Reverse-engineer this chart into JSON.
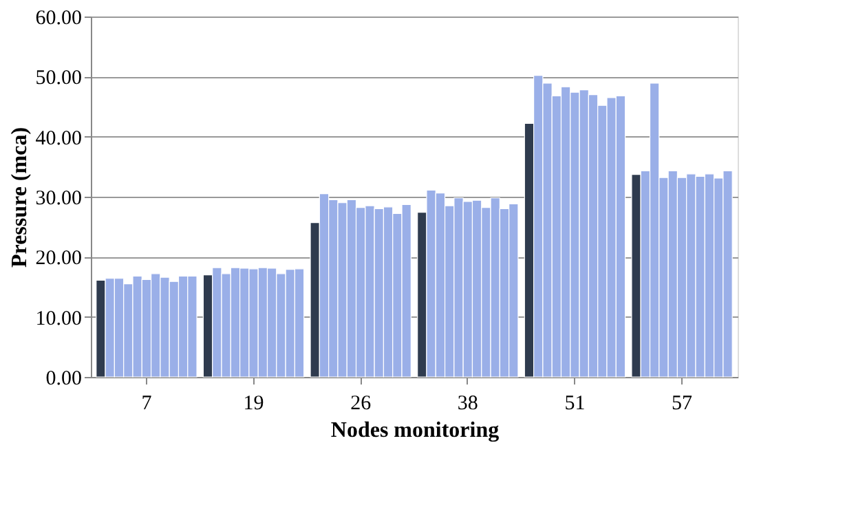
{
  "chart_data": {
    "type": "bar",
    "xlabel": "Nodes monitoring",
    "ylabel": "Pressure (mca)",
    "categories": [
      "7",
      "19",
      "26",
      "38",
      "51",
      "57"
    ],
    "series": [
      {
        "color": "#2f3b4e",
        "values": [
          16.1,
          17.0,
          25.7,
          27.4,
          42.2,
          33.7
        ]
      },
      {
        "color": "#9aafe8",
        "values": [
          16.4,
          18.2,
          30.5,
          31.1,
          50.2,
          34.3
        ]
      },
      {
        "color": "#9aafe8",
        "values": [
          16.4,
          17.2,
          29.5,
          30.6,
          48.9,
          48.9
        ]
      },
      {
        "color": "#9aafe8",
        "values": [
          15.5,
          18.2,
          29.0,
          28.5,
          46.8,
          33.2
        ]
      },
      {
        "color": "#9aafe8",
        "values": [
          16.8,
          18.1,
          29.5,
          29.8,
          48.3,
          34.3
        ]
      },
      {
        "color": "#9aafe8",
        "values": [
          16.2,
          18.0,
          28.2,
          29.2,
          47.4,
          33.2
        ]
      },
      {
        "color": "#9aafe8",
        "values": [
          17.2,
          18.2,
          28.5,
          29.4,
          47.8,
          33.8
        ]
      },
      {
        "color": "#9aafe8",
        "values": [
          16.6,
          18.1,
          28.0,
          28.2,
          47.0,
          33.4
        ]
      },
      {
        "color": "#9aafe8",
        "values": [
          15.9,
          17.2,
          28.3,
          29.8,
          45.2,
          33.8
        ]
      },
      {
        "color": "#9aafe8",
        "values": [
          16.8,
          17.9,
          27.2,
          28.0,
          46.5,
          33.1
        ]
      },
      {
        "color": "#9aafe8",
        "values": [
          16.8,
          18.0,
          28.7,
          28.8,
          46.8,
          34.3
        ]
      }
    ],
    "ylim": [
      0,
      60
    ],
    "yticks": [
      {
        "value": 0,
        "label": "0.00"
      },
      {
        "value": 10,
        "label": "10.00"
      },
      {
        "value": 20,
        "label": "20.00"
      },
      {
        "value": 30,
        "label": "30.00"
      },
      {
        "value": 40,
        "label": "40.00"
      },
      {
        "value": 50,
        "label": "50.00"
      },
      {
        "value": 60,
        "label": "60.00"
      }
    ],
    "grid": "y",
    "legend": false
  }
}
